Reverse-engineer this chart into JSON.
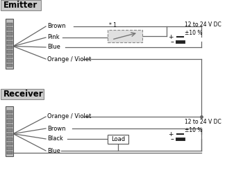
{
  "emitter_label": "Emitter",
  "receiver_label": "Receiver",
  "emitter_wires": [
    "Brown",
    "Pink",
    "Blue",
    "Orange / Violet"
  ],
  "receiver_wires": [
    "Orange / Violet",
    "Brown",
    "Black",
    "Blue"
  ],
  "power_label": "12 to 24 V DC\n±10 %",
  "load_label": "Load",
  "star1_label": "* 1",
  "bg_color": "#ffffff",
  "wire_color": "#666666",
  "connector_face": "#c0c0c0",
  "connector_edge": "#555555",
  "sq_face": "#888888",
  "sq_edge": "#333333",
  "switch_face": "#e0e0e0",
  "switch_edge": "#888888",
  "battery_color": "#222222",
  "label_bg": "#cccccc",
  "label_edge": "#888888",
  "text_color": "#000000",
  "load_bg": "#ffffff",
  "load_edge": "#555555"
}
